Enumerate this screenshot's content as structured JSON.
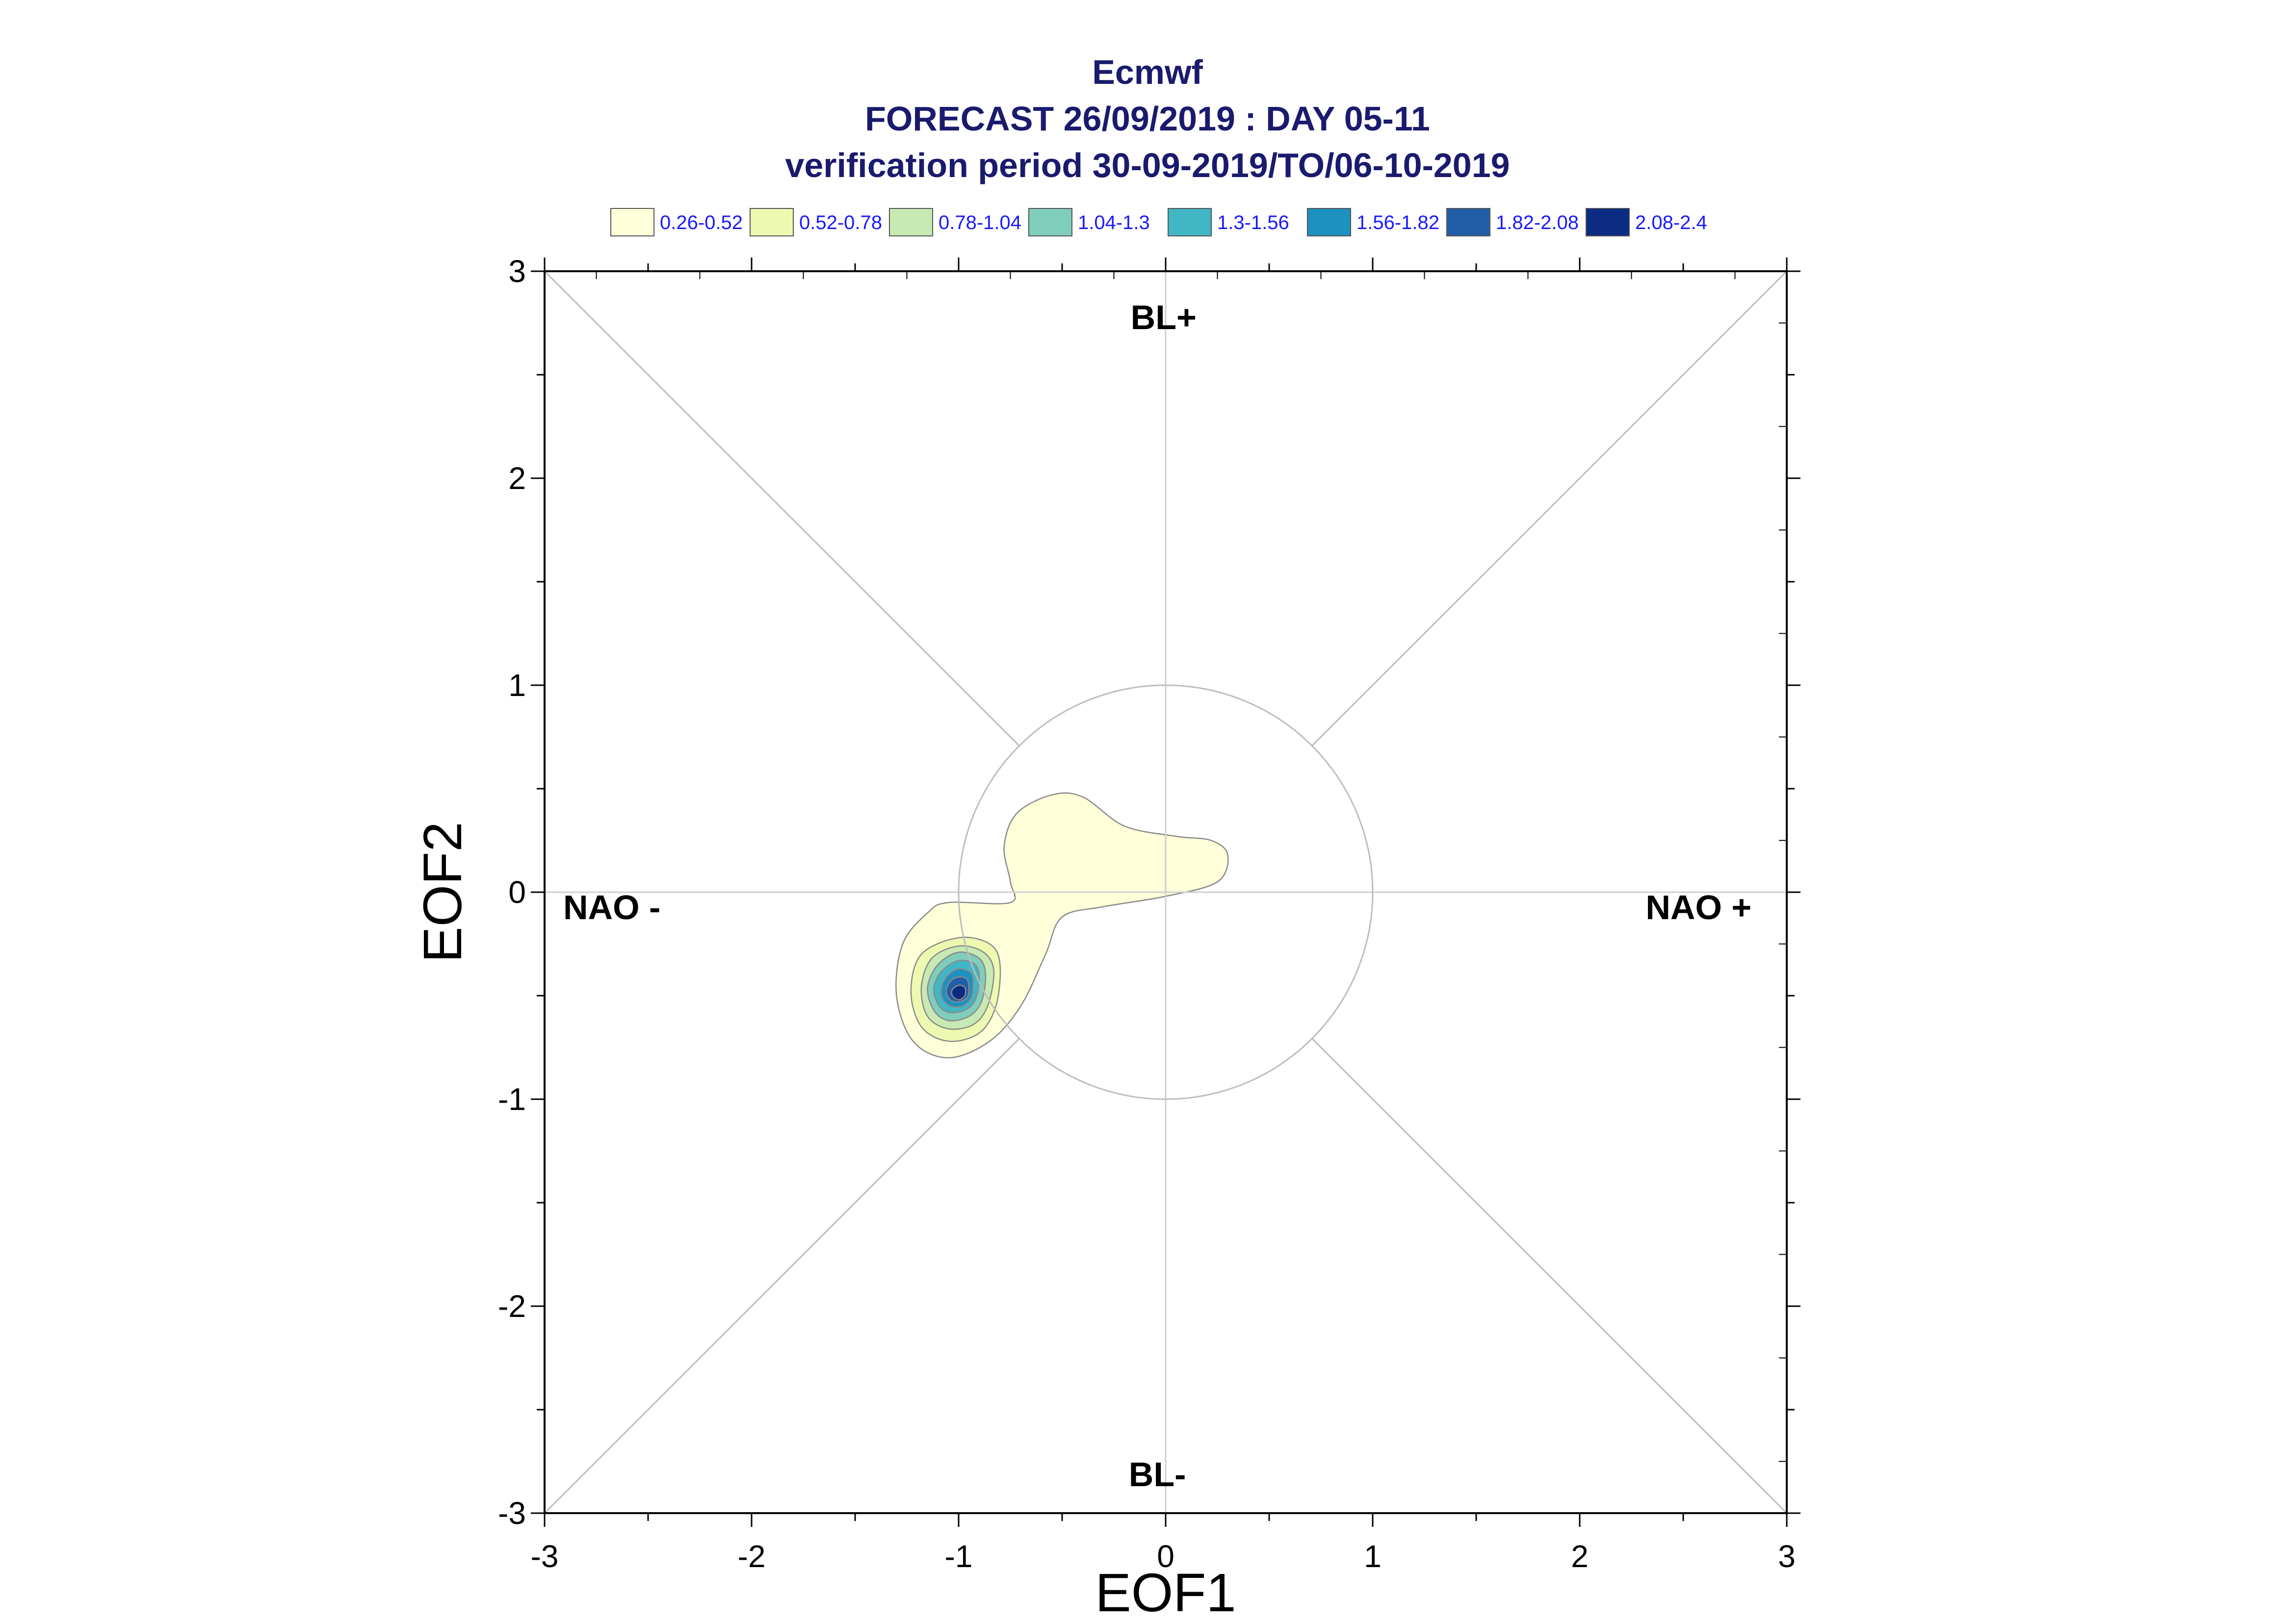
{
  "chart_data": {
    "type": "contour",
    "title_lines": [
      "Ecmwf",
      "FORECAST 26/09/2019 : DAY 05-11",
      "verification period 30-09-2019/TO/06-10-2019"
    ],
    "xlabel": "EOF1",
    "ylabel": "EOF2",
    "xlim": [
      -3,
      3
    ],
    "ylim": [
      -3,
      3
    ],
    "x_ticks": [
      "-3",
      "-2",
      "-1",
      "0",
      "1",
      "2",
      "3"
    ],
    "y_ticks": [
      "-3",
      "-2",
      "-1",
      "0",
      "1",
      "2",
      "3"
    ],
    "grid": false,
    "reference_circle_radius": 1,
    "regime_labels": {
      "top": "BL+",
      "bottom": "BL-",
      "left": "NAO -",
      "right": "NAO +"
    },
    "legend": [
      {
        "label": "0.26-0.52",
        "color": "#ffffd9"
      },
      {
        "label": "0.52-0.78",
        "color": "#edf8b1"
      },
      {
        "label": "0.78-1.04",
        "color": "#c7e9b4"
      },
      {
        "label": "1.04-1.3",
        "color": "#7fcdbb"
      },
      {
        "label": "1.3-1.56",
        "color": "#41b6c4"
      },
      {
        "label": "1.56-1.82",
        "color": "#1d91c0"
      },
      {
        "label": "1.82-2.08",
        "color": "#225ea8"
      },
      {
        "label": "2.08-2.4",
        "color": "#0c2c84"
      }
    ],
    "density_peak": {
      "x": -1.0,
      "y": -0.5,
      "max_level": "2.08-2.4"
    },
    "contours": [
      {
        "level": "0.26-0.52",
        "points": [
          [
            -1.05,
            -0.05
          ],
          [
            -0.75,
            -0.05
          ],
          [
            -0.75,
            0.05
          ],
          [
            -0.78,
            0.22
          ],
          [
            -0.72,
            0.38
          ],
          [
            -0.55,
            0.47
          ],
          [
            -0.4,
            0.46
          ],
          [
            -0.2,
            0.32
          ],
          [
            0.05,
            0.27
          ],
          [
            0.22,
            0.25
          ],
          [
            0.3,
            0.18
          ],
          [
            0.25,
            0.05
          ],
          [
            0.0,
            -0.02
          ],
          [
            -0.3,
            -0.07
          ],
          [
            -0.5,
            -0.12
          ],
          [
            -0.58,
            -0.3
          ],
          [
            -0.7,
            -0.55
          ],
          [
            -0.85,
            -0.72
          ],
          [
            -1.05,
            -0.8
          ],
          [
            -1.22,
            -0.72
          ],
          [
            -1.3,
            -0.5
          ],
          [
            -1.27,
            -0.25
          ],
          [
            -1.15,
            -0.1
          ]
        ]
      },
      {
        "level": "0.52-0.78",
        "points": [
          [
            -1.0,
            -0.22
          ],
          [
            -0.85,
            -0.25
          ],
          [
            -0.8,
            -0.35
          ],
          [
            -0.82,
            -0.55
          ],
          [
            -0.9,
            -0.68
          ],
          [
            -1.05,
            -0.72
          ],
          [
            -1.18,
            -0.65
          ],
          [
            -1.23,
            -0.48
          ],
          [
            -1.18,
            -0.3
          ]
        ]
      },
      {
        "level": "0.78-1.04",
        "points": [
          [
            -1.0,
            -0.26
          ],
          [
            -0.88,
            -0.29
          ],
          [
            -0.83,
            -0.38
          ],
          [
            -0.86,
            -0.55
          ],
          [
            -0.93,
            -0.64
          ],
          [
            -1.05,
            -0.66
          ],
          [
            -1.15,
            -0.6
          ],
          [
            -1.18,
            -0.46
          ],
          [
            -1.13,
            -0.32
          ]
        ]
      },
      {
        "level": "1.04-1.3",
        "points": [
          [
            -1.0,
            -0.29
          ],
          [
            -0.9,
            -0.32
          ],
          [
            -0.87,
            -0.4
          ],
          [
            -0.89,
            -0.53
          ],
          [
            -0.95,
            -0.6
          ],
          [
            -1.05,
            -0.62
          ],
          [
            -1.12,
            -0.57
          ],
          [
            -1.15,
            -0.46
          ],
          [
            -1.1,
            -0.35
          ]
        ]
      },
      {
        "level": "1.3-1.56",
        "points": [
          [
            -1.0,
            -0.33
          ],
          [
            -0.92,
            -0.35
          ],
          [
            -0.9,
            -0.42
          ],
          [
            -0.92,
            -0.52
          ],
          [
            -0.97,
            -0.57
          ],
          [
            -1.05,
            -0.58
          ],
          [
            -1.1,
            -0.54
          ],
          [
            -1.12,
            -0.46
          ],
          [
            -1.08,
            -0.38
          ]
        ]
      },
      {
        "level": "1.56-1.82",
        "points": [
          [
            -1.0,
            -0.37
          ],
          [
            -0.94,
            -0.39
          ],
          [
            -0.93,
            -0.45
          ],
          [
            -0.94,
            -0.51
          ],
          [
            -0.98,
            -0.55
          ],
          [
            -1.04,
            -0.55
          ],
          [
            -1.08,
            -0.51
          ],
          [
            -1.08,
            -0.45
          ],
          [
            -1.05,
            -0.4
          ]
        ]
      },
      {
        "level": "1.82-2.08",
        "points": [
          [
            -1.0,
            -0.41
          ],
          [
            -0.96,
            -0.42
          ],
          [
            -0.95,
            -0.47
          ],
          [
            -0.96,
            -0.51
          ],
          [
            -1.0,
            -0.53
          ],
          [
            -1.04,
            -0.52
          ],
          [
            -1.06,
            -0.48
          ],
          [
            -1.04,
            -0.43
          ]
        ]
      },
      {
        "level": "2.08-2.4",
        "points": [
          [
            -1.0,
            -0.45
          ],
          [
            -0.97,
            -0.46
          ],
          [
            -0.97,
            -0.5
          ],
          [
            -1.0,
            -0.52
          ],
          [
            -1.03,
            -0.5
          ],
          [
            -1.03,
            -0.47
          ]
        ]
      }
    ]
  }
}
